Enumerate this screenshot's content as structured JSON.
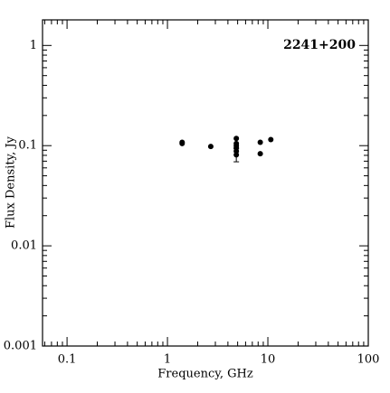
{
  "chart_data": {
    "type": "scatter",
    "title": "2241+200",
    "xlabel": "Frequency, GHz",
    "ylabel": "Flux Density, Jy",
    "xscale": "log",
    "yscale": "log",
    "xlim": [
      0.057,
      100
    ],
    "ylim": [
      0.001,
      1.8
    ],
    "xticks": [
      0.1,
      1,
      10,
      100
    ],
    "yticks": [
      0.001,
      0.01,
      0.1,
      1
    ],
    "color": "#000000",
    "x": [
      1.4,
      1.4,
      2.7,
      4.85,
      4.85,
      4.85,
      4.85,
      4.85,
      4.85,
      8.4,
      8.4,
      10.7
    ],
    "y": [
      0.108,
      0.105,
      0.098,
      0.118,
      0.105,
      0.1,
      0.095,
      0.088,
      0.081,
      0.108,
      0.083,
      0.115
    ],
    "yerr": [
      null,
      null,
      null,
      null,
      null,
      null,
      null,
      null,
      0.012,
      null,
      null,
      null
    ]
  }
}
